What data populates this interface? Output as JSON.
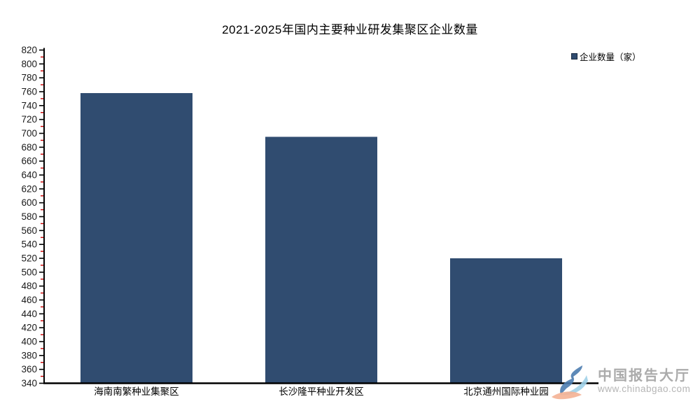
{
  "title": "2021-2025年国内主要种业研发集聚区企业数量",
  "legend": {
    "label": "企业数量（家）",
    "marker_color": "#304C70",
    "marker_border": "#16283f"
  },
  "chart_data": {
    "type": "bar",
    "title": "2021-2025年国内主要种业研发集聚区企业数量",
    "categories": [
      "海南南繁种业集聚区",
      "长沙隆平种业开发区",
      "北京通州国际种业园"
    ],
    "series": [
      {
        "name": "企业数量（家）",
        "values": [
          758,
          695,
          520
        ]
      }
    ],
    "xlabel": "",
    "ylabel": "",
    "ylim": [
      340,
      820
    ],
    "y_major_step": 20,
    "y_minor_step": 10,
    "grid": false,
    "legend_position": "top-right",
    "bar_color": "#304C70",
    "axis_color": "#000000",
    "major_tick_color": "#000000",
    "minor_tick_color": "#cc0000",
    "tick_label_color": "#1a1a1a"
  },
  "watermark": {
    "name": "中国报告大厅",
    "url": "www.chinabgao.com"
  }
}
